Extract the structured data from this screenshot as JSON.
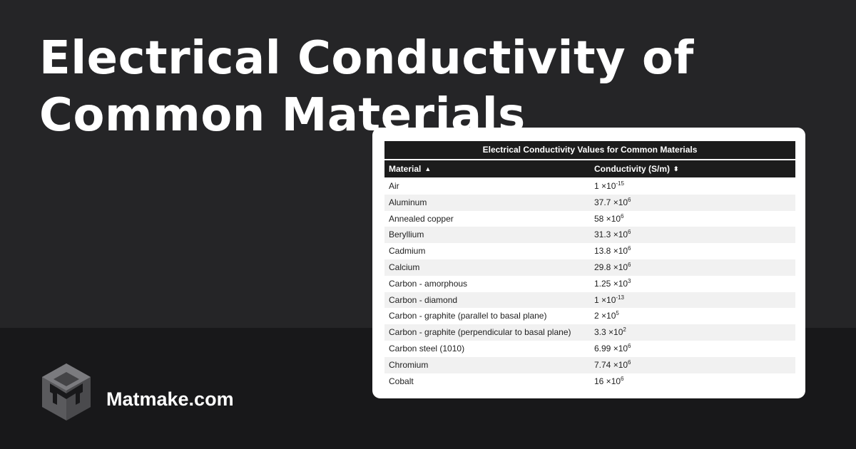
{
  "page": {
    "headline": "Electrical Conductivity of Common Materials",
    "brand": "Matmake.com",
    "logo_icon": "matmake-cube-logo-icon"
  },
  "colors": {
    "top_background": "#252527",
    "bottom_background": "#18181a",
    "table_header": "#1c1c1c",
    "alt_row": "#f1f1f1"
  },
  "table": {
    "caption": "Electrical Conductivity Values for Common Materials",
    "columns": [
      {
        "label": "Material",
        "sort_icon": "sort-ascending-icon"
      },
      {
        "label": "Conductivity (S/m)",
        "sort_icon": "sort-both-icon"
      }
    ],
    "rows": [
      {
        "material": "Air",
        "mantissa": "1 ×10",
        "exponent": "-15"
      },
      {
        "material": "Aluminum",
        "mantissa": "37.7 ×10",
        "exponent": "6"
      },
      {
        "material": "Annealed copper",
        "mantissa": "58 ×10",
        "exponent": "6"
      },
      {
        "material": "Beryllium",
        "mantissa": "31.3 ×10",
        "exponent": "6"
      },
      {
        "material": "Cadmium",
        "mantissa": "13.8 ×10",
        "exponent": "6"
      },
      {
        "material": "Calcium",
        "mantissa": "29.8 ×10",
        "exponent": "6"
      },
      {
        "material": "Carbon - amorphous",
        "mantissa": "1.25 ×10",
        "exponent": "3"
      },
      {
        "material": "Carbon - diamond",
        "mantissa": "1 ×10",
        "exponent": "-13"
      },
      {
        "material": "Carbon - graphite (parallel to basal plane)",
        "mantissa": "2 ×10",
        "exponent": "5"
      },
      {
        "material": "Carbon - graphite (perpendicular to basal plane)",
        "mantissa": "3.3 ×10",
        "exponent": "2"
      },
      {
        "material": "Carbon steel (1010)",
        "mantissa": "6.99 ×10",
        "exponent": "6"
      },
      {
        "material": "Chromium",
        "mantissa": "7.74 ×10",
        "exponent": "6"
      },
      {
        "material": "Cobalt",
        "mantissa": "16 ×10",
        "exponent": "6"
      }
    ]
  }
}
